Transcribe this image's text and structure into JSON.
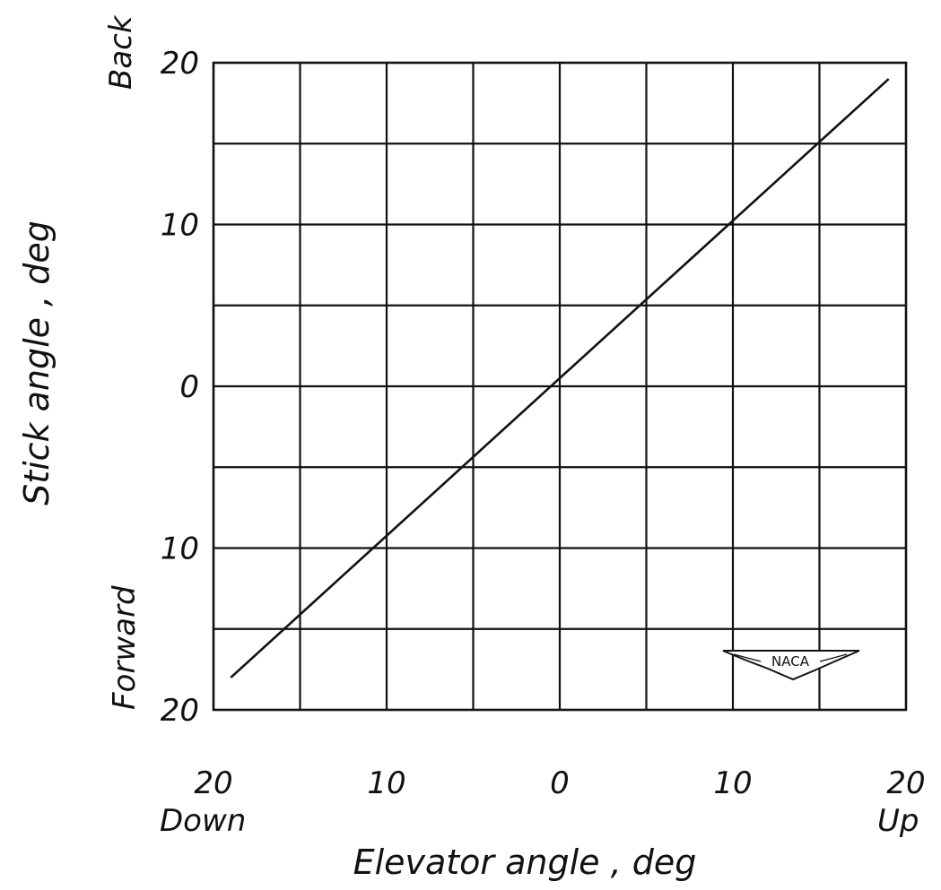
{
  "chart_data": {
    "type": "line",
    "xlabel": "Elevator angle , deg",
    "ylabel": "Stick angle , deg",
    "x_direction_labels": {
      "negative": "Down",
      "positive": "Up"
    },
    "y_direction_labels": {
      "negative": "Forward",
      "positive": "Back"
    },
    "xlim": [
      -20,
      20
    ],
    "ylim": [
      -20,
      20
    ],
    "x_ticks": [
      {
        "value": -20,
        "label": "20"
      },
      {
        "value": -10,
        "label": "10"
      },
      {
        "value": 0,
        "label": "0"
      },
      {
        "value": 10,
        "label": "10"
      },
      {
        "value": 20,
        "label": "20"
      }
    ],
    "y_ticks": [
      {
        "value": 20,
        "label": "20"
      },
      {
        "value": 10,
        "label": "10"
      },
      {
        "value": 0,
        "label": "0"
      },
      {
        "value": -10,
        "label": "10"
      },
      {
        "value": -20,
        "label": "20"
      }
    ],
    "grid_step": 5,
    "grid": true,
    "series": [
      {
        "x": [
          -19,
          19
        ],
        "y": [
          -18,
          19
        ]
      }
    ],
    "logo": "NACA",
    "colors": {
      "ink": "#111111",
      "background": "#ffffff"
    }
  }
}
